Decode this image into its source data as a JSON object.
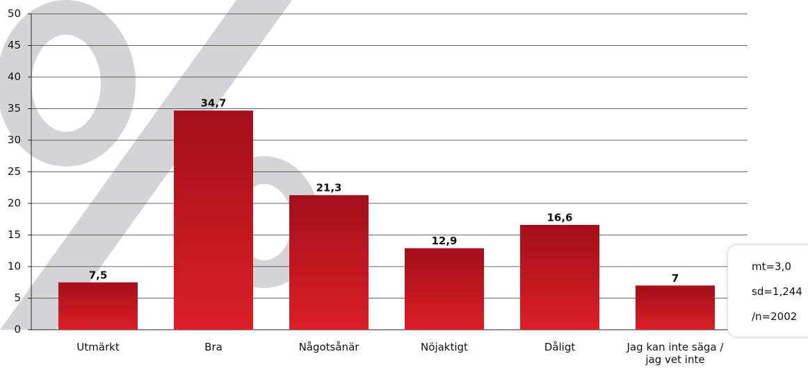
{
  "chart_data": {
    "type": "bar",
    "categories": [
      "Utmärkt",
      "Bra",
      "Någotsånär",
      "Nöjaktigt",
      "Dåligt",
      "Jag kan inte säga / jag vet inte"
    ],
    "values": [
      7.5,
      34.7,
      21.3,
      12.9,
      16.6,
      7
    ],
    "value_labels": [
      "7,5",
      "34,7",
      "21,3",
      "12,9",
      "16,6",
      "7"
    ],
    "color": "#c0161f",
    "ylim": [
      0,
      50
    ],
    "yticks": [
      0,
      5,
      10,
      15,
      20,
      25,
      30,
      35,
      40,
      45,
      50
    ],
    "grid": true,
    "annotations": [
      "mt=3,0",
      "sd=1,244",
      "/n=2002"
    ]
  }
}
